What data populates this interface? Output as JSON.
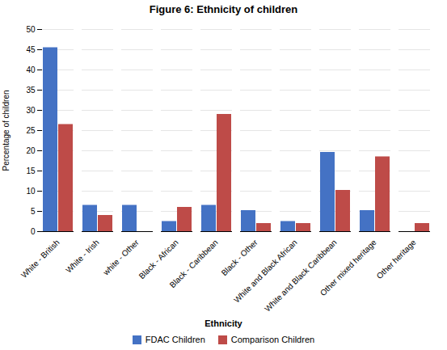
{
  "chart_data": {
    "type": "bar",
    "title": "Figure 6: Ethnicity of children",
    "xlabel": "Ethnicity",
    "ylabel": "Percentage of children",
    "categories": [
      "White - British",
      "White - Irish",
      "white - Other",
      "Black - African",
      "Black - Caribbean",
      "Black - Other",
      "White and Black African",
      "White and Black Caribbean",
      "Other mixed heritage",
      "Other heritage"
    ],
    "series": [
      {
        "name": "FDAC Children",
        "color": "#4472C4",
        "values": [
          45.5,
          6.5,
          6.5,
          2.5,
          6.5,
          5.2,
          2.5,
          19.6,
          5.2,
          0.0
        ]
      },
      {
        "name": "Comparison Children",
        "color": "#BE4B48",
        "values": [
          26.5,
          4.0,
          0.0,
          6.0,
          29.0,
          2.0,
          2.0,
          10.2,
          18.5,
          2.0
        ]
      }
    ],
    "ylim": [
      0,
      50
    ],
    "yticks": [
      0,
      5,
      10,
      15,
      20,
      25,
      30,
      35,
      40,
      45,
      50
    ],
    "grid": true,
    "legend": "bottom"
  }
}
